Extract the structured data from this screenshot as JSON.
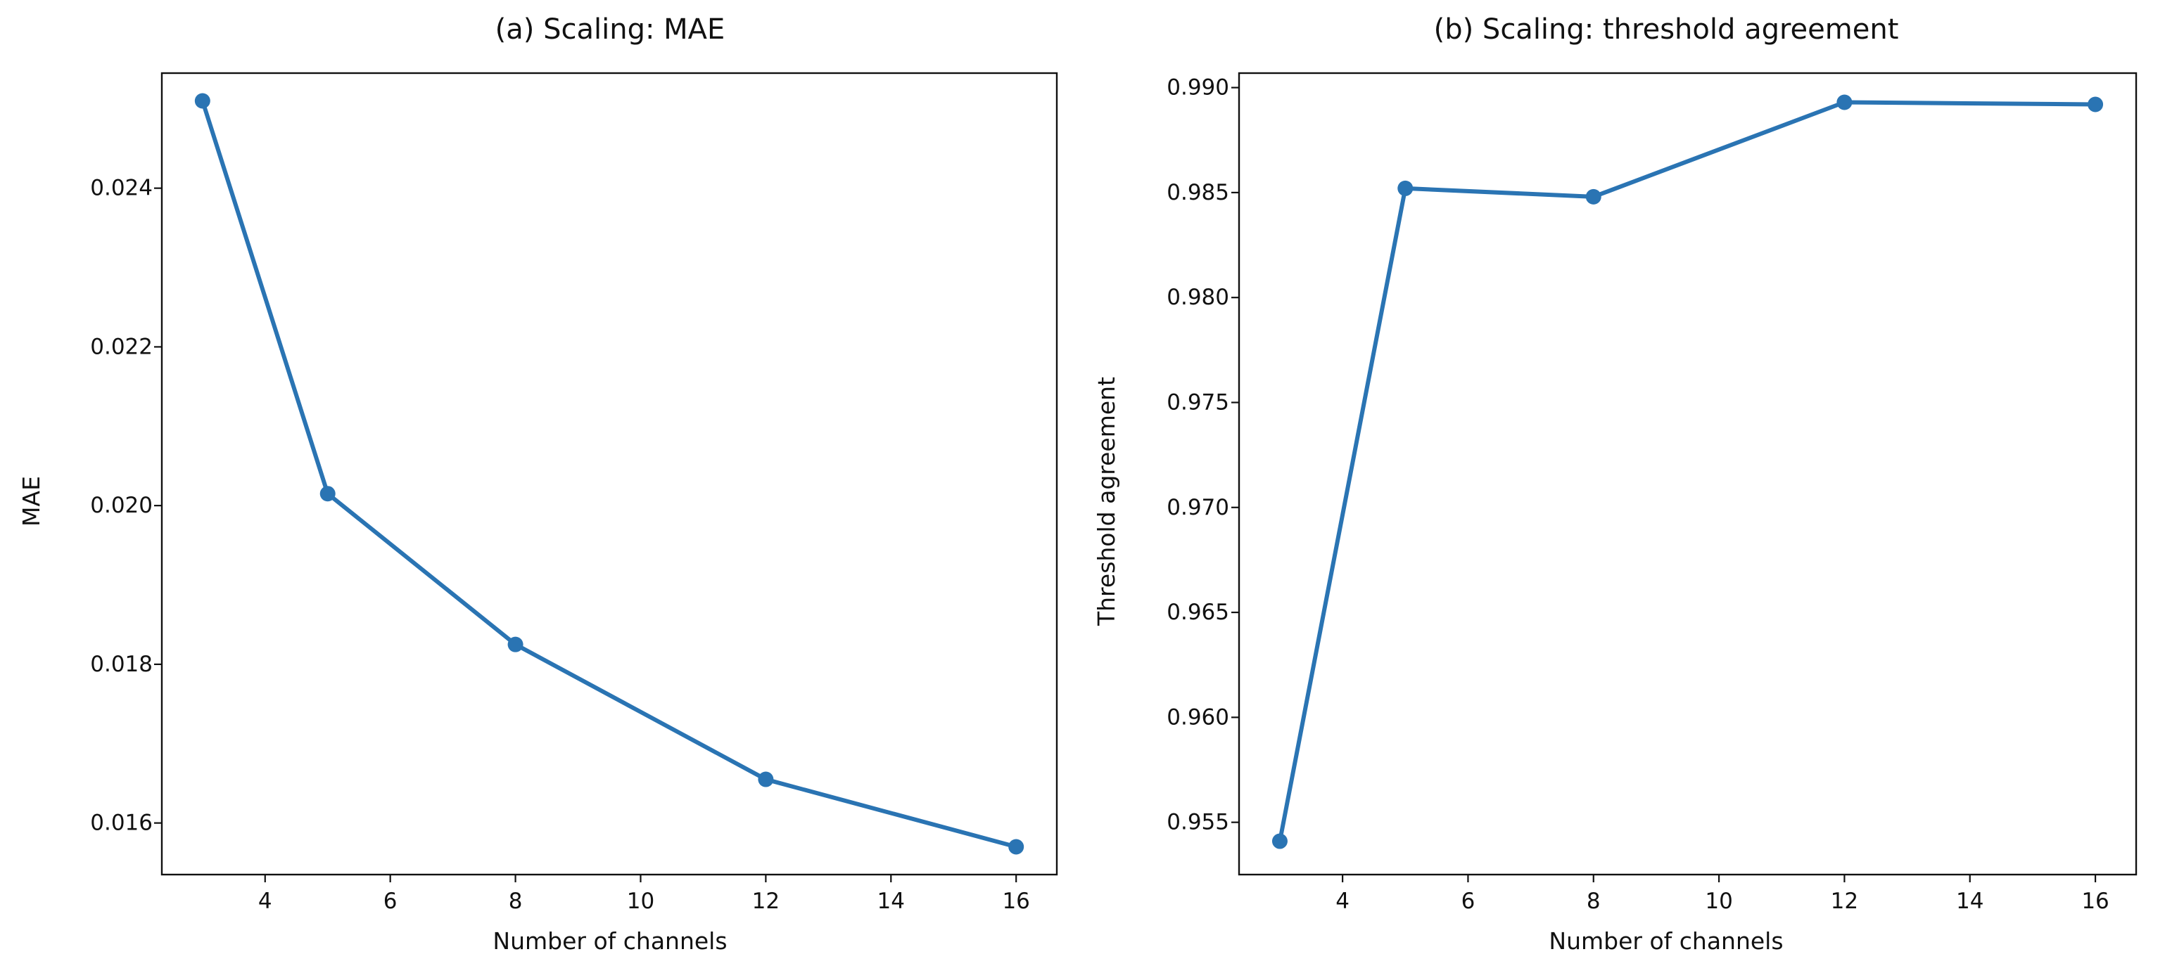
{
  "chart_data": [
    {
      "type": "line",
      "title": "(a) Scaling: MAE",
      "xlabel": "Number of channels",
      "ylabel": "MAE",
      "x": [
        3,
        5,
        8,
        12,
        16
      ],
      "series": [
        {
          "values": [
            0.0251,
            0.02015,
            0.01825,
            0.01655,
            0.0157
          ]
        }
      ],
      "xlim": [
        2.35,
        16.65
      ],
      "ylim": [
        0.01535,
        0.02545
      ],
      "xticks": [
        4,
        6,
        8,
        10,
        12,
        14,
        16
      ],
      "xtick_labels": [
        "4",
        "6",
        "8",
        "10",
        "12",
        "14",
        "16"
      ],
      "yticks": [
        0.016,
        0.018,
        0.02,
        0.022,
        0.024
      ],
      "ytick_labels": [
        "0.016",
        "0.018",
        "0.020",
        "0.022",
        "0.024"
      ],
      "grid": false,
      "line_color": "#2a74b3",
      "marker": "circle"
    },
    {
      "type": "line",
      "title": "(b) Scaling: threshold agreement",
      "xlabel": "Number of channels",
      "ylabel": "Threshold agreement",
      "x": [
        3,
        5,
        8,
        12,
        16
      ],
      "series": [
        {
          "values": [
            0.9541,
            0.9852,
            0.9848,
            0.9893,
            0.9892
          ]
        }
      ],
      "xlim": [
        2.35,
        16.65
      ],
      "ylim": [
        0.95251,
        0.99069
      ],
      "xticks": [
        4,
        6,
        8,
        10,
        12,
        14,
        16
      ],
      "xtick_labels": [
        "4",
        "6",
        "8",
        "10",
        "12",
        "14",
        "16"
      ],
      "yticks": [
        0.955,
        0.96,
        0.965,
        0.97,
        0.975,
        0.98,
        0.985,
        0.99
      ],
      "ytick_labels": [
        "0.955",
        "0.960",
        "0.965",
        "0.970",
        "0.975",
        "0.980",
        "0.985",
        "0.990"
      ],
      "grid": false,
      "line_color": "#2a74b3",
      "marker": "circle"
    }
  ]
}
